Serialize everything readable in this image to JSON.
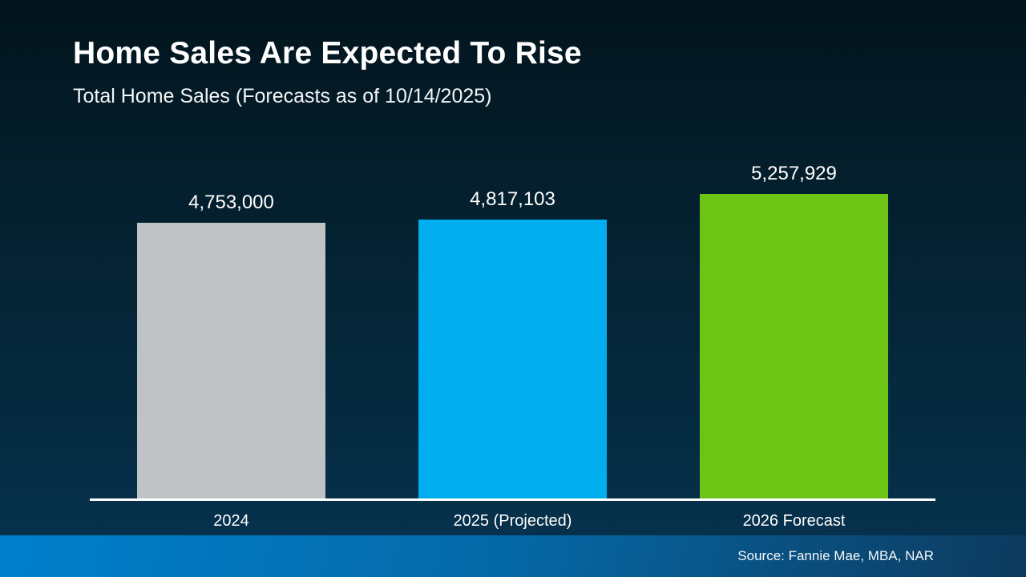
{
  "slide": {
    "title": "Home Sales Are Expected To Rise",
    "subtitle": "Total Home Sales (Forecasts as of 10/14/2025)",
    "source": "Source: Fannie Mae, MBA, NAR"
  },
  "chart_data": {
    "type": "bar",
    "title": "Home Sales Are Expected To Rise",
    "subtitle": "Total Home Sales (Forecasts as of 10/14/2025)",
    "categories": [
      "2024",
      "2025 (Projected)",
      "2026 Forecast"
    ],
    "values": [
      4753000,
      4817103,
      5257929
    ],
    "value_labels": [
      "4,753,000",
      "4,817,103",
      "5,257,929"
    ],
    "bar_colors": [
      "#bfc3c5",
      "#00aeef",
      "#6cc414"
    ],
    "ylim": [
      0,
      5257929
    ],
    "grid": false,
    "legend": false,
    "baseline_axis": "white horizontal line",
    "source": "Source: Fannie Mae, MBA, NAR"
  },
  "colors": {
    "background_top": "#02141d",
    "background_bottom": "#063350",
    "bar_2024": "#bfc3c5",
    "bar_2025": "#00aeef",
    "bar_2026": "#6cc414",
    "axis_line": "#ffffff",
    "footer_left": "#0080cd",
    "footer_right": "#0d3a5e",
    "text": "#ffffff"
  }
}
